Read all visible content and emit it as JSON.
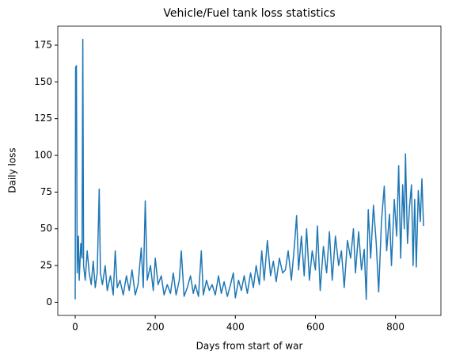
{
  "chart_data": {
    "type": "line",
    "title": "Vehicle/Fuel tank loss statistics",
    "xlabel": "Days from start of war",
    "ylabel": "Daily loss",
    "color": "#1f77b4",
    "x": [
      0,
      1,
      3,
      5,
      8,
      10,
      14,
      17,
      19,
      21,
      25,
      30,
      35,
      40,
      45,
      50,
      55,
      60,
      63,
      68,
      75,
      80,
      88,
      95,
      100,
      105,
      112,
      120,
      128,
      135,
      142,
      150,
      157,
      165,
      170,
      175,
      180,
      188,
      195,
      200,
      207,
      215,
      222,
      230,
      238,
      245,
      252,
      260,
      265,
      272,
      280,
      288,
      295,
      300,
      308,
      315,
      320,
      328,
      335,
      342,
      350,
      358,
      365,
      372,
      380,
      388,
      395,
      400,
      408,
      415,
      422,
      430,
      438,
      445,
      452,
      460,
      466,
      472,
      480,
      488,
      495,
      502,
      510,
      518,
      525,
      532,
      540,
      548,
      553,
      558,
      565,
      572,
      578,
      585,
      592,
      600,
      605,
      612,
      620,
      628,
      635,
      642,
      650,
      658,
      665,
      672,
      680,
      688,
      695,
      700,
      708,
      715,
      722,
      727,
      732,
      738,
      745,
      752,
      758,
      765,
      772,
      778,
      785,
      790,
      797,
      803,
      808,
      813,
      818,
      822,
      825,
      830,
      835,
      840,
      844,
      848,
      852,
      857,
      862,
      866,
      870
    ],
    "values": [
      2,
      160,
      161,
      20,
      45,
      15,
      40,
      30,
      179,
      25,
      15,
      35,
      20,
      12,
      28,
      10,
      20,
      77,
      20,
      12,
      25,
      8,
      18,
      5,
      35,
      10,
      15,
      5,
      18,
      8,
      22,
      5,
      12,
      37,
      10,
      69,
      15,
      25,
      8,
      30,
      12,
      18,
      5,
      12,
      6,
      20,
      5,
      15,
      35,
      4,
      10,
      18,
      6,
      12,
      4,
      35,
      5,
      15,
      8,
      12,
      5,
      18,
      6,
      14,
      4,
      12,
      20,
      3,
      15,
      8,
      18,
      6,
      20,
      10,
      25,
      12,
      35,
      15,
      42,
      18,
      28,
      14,
      30,
      20,
      22,
      35,
      15,
      40,
      59,
      22,
      45,
      18,
      50,
      15,
      35,
      22,
      52,
      8,
      38,
      20,
      48,
      15,
      45,
      25,
      35,
      10,
      42,
      30,
      50,
      20,
      48,
      22,
      36,
      2,
      63,
      30,
      66,
      40,
      7,
      55,
      79,
      35,
      60,
      25,
      70,
      45,
      93,
      30,
      80,
      50,
      101,
      40,
      65,
      80,
      25,
      70,
      24,
      76,
      55,
      84,
      52
    ],
    "xlim": [
      -43.5,
      913.5
    ],
    "ylim": [
      -8.95,
      187.95
    ],
    "xticks": [
      0,
      200,
      400,
      600,
      800
    ],
    "yticks": [
      0,
      25,
      50,
      75,
      100,
      125,
      150,
      175
    ],
    "grid": false
  }
}
